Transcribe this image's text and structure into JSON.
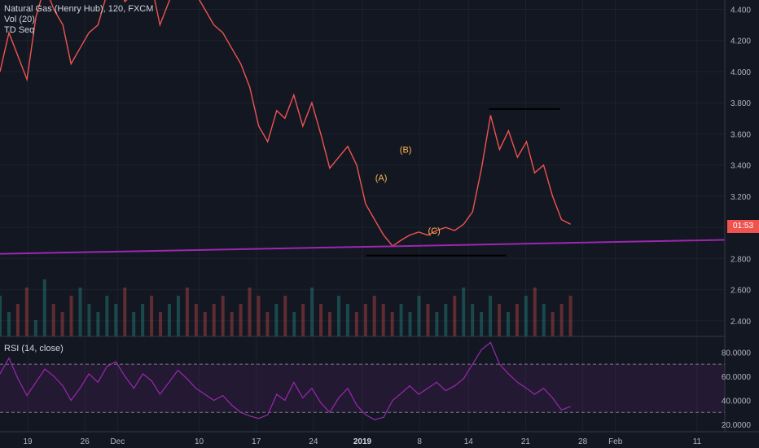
{
  "legend": {
    "title": "Natural Gas (Henry Hub), 120, FXCM",
    "vol": "Vol (20)",
    "td": "TD Seq"
  },
  "rsi_legend": "RSI (14, close)",
  "price_tag": "01:53",
  "colors": {
    "background": "#131722",
    "up": "#26a69a",
    "down": "#ef5350",
    "trendline": "#9c27b0",
    "rsi": "#9c27b0",
    "wave_label": "#ffb74d"
  },
  "wave_labels": [
    {
      "text": "(A)",
      "x": 17.3,
      "y": 3.3
    },
    {
      "text": "(B)",
      "x": 20.3,
      "y": 3.48
    },
    {
      "text": "(C)",
      "x": 23.8,
      "y": 2.96
    }
  ],
  "chart_data": [
    {
      "type": "line",
      "title": "Natural Gas (Henry Hub), 120, FXCM",
      "x_ticks": [
        {
          "label": "19",
          "x": -26
        },
        {
          "label": "26",
          "x": -19
        },
        {
          "label": "Dec",
          "x": -15
        },
        {
          "label": "10",
          "x": -5
        },
        {
          "label": "17",
          "x": 2
        },
        {
          "label": "24",
          "x": 9
        },
        {
          "label": "2019",
          "x": 15
        },
        {
          "label": "8",
          "x": 22
        },
        {
          "label": "14",
          "x": 28
        },
        {
          "label": "21",
          "x": 35
        },
        {
          "label": "28",
          "x": 42
        },
        {
          "label": "Feb",
          "x": 46
        },
        {
          "label": "11",
          "x": 56
        }
      ],
      "y_ticks": [
        "2.400",
        "2.600",
        "2.800",
        "3.000",
        "3.200",
        "3.400",
        "3.600",
        "3.800",
        "4.000",
        "4.200",
        "4.400"
      ],
      "ylim": [
        2.3,
        4.46
      ],
      "xlim": [
        -29.4,
        59.4
      ],
      "price_path": [
        [
          -29.4,
          4.0
        ],
        [
          -28.3,
          4.25
        ],
        [
          -27.2,
          4.1
        ],
        [
          -26.1,
          3.95
        ],
        [
          -25.0,
          4.35
        ],
        [
          -23.9,
          4.55
        ],
        [
          -22.8,
          4.4
        ],
        [
          -21.7,
          4.3
        ],
        [
          -20.7,
          4.05
        ],
        [
          -19.6,
          4.15
        ],
        [
          -18.5,
          4.25
        ],
        [
          -17.4,
          4.3
        ],
        [
          -16.3,
          4.5
        ],
        [
          -15.2,
          4.6
        ],
        [
          -14.1,
          4.45
        ],
        [
          -13.0,
          4.5
        ],
        [
          -11.9,
          4.62
        ],
        [
          -10.8,
          4.55
        ],
        [
          -9.8,
          4.3
        ],
        [
          -8.7,
          4.45
        ],
        [
          -7.6,
          4.6
        ],
        [
          -6.5,
          4.55
        ],
        [
          -5.4,
          4.5
        ],
        [
          -4.3,
          4.4
        ],
        [
          -3.2,
          4.3
        ],
        [
          -2.1,
          4.25
        ],
        [
          -1.0,
          4.15
        ],
        [
          0.1,
          4.05
        ],
        [
          1.2,
          3.9
        ],
        [
          2.3,
          3.65
        ],
        [
          3.4,
          3.55
        ],
        [
          4.5,
          3.75
        ],
        [
          5.5,
          3.7
        ],
        [
          6.6,
          3.85
        ],
        [
          7.7,
          3.65
        ],
        [
          8.8,
          3.8
        ],
        [
          9.9,
          3.6
        ],
        [
          11.0,
          3.38
        ],
        [
          12.1,
          3.45
        ],
        [
          13.2,
          3.52
        ],
        [
          14.3,
          3.4
        ],
        [
          15.4,
          3.15
        ],
        [
          16.5,
          3.05
        ],
        [
          17.6,
          2.95
        ],
        [
          18.7,
          2.88
        ],
        [
          19.8,
          2.92
        ],
        [
          20.8,
          2.95
        ],
        [
          21.9,
          2.97
        ],
        [
          23.0,
          2.95
        ],
        [
          24.1,
          2.98
        ],
        [
          25.2,
          3.0
        ],
        [
          26.3,
          2.98
        ],
        [
          27.4,
          3.02
        ],
        [
          28.5,
          3.1
        ],
        [
          29.6,
          3.38
        ],
        [
          30.7,
          3.72
        ],
        [
          31.8,
          3.5
        ],
        [
          32.9,
          3.62
        ],
        [
          34.0,
          3.45
        ],
        [
          35.1,
          3.55
        ],
        [
          36.1,
          3.35
        ],
        [
          37.2,
          3.4
        ],
        [
          38.3,
          3.2
        ],
        [
          39.4,
          3.05
        ],
        [
          40.5,
          3.02
        ]
      ],
      "trendline": [
        [
          -29.4,
          2.83
        ],
        [
          59.4,
          2.92
        ]
      ],
      "range_levels": [
        {
          "x1": 30.5,
          "x2": 39.2,
          "y": 3.76
        },
        {
          "x1": 15.5,
          "x2": 32.6,
          "y": 2.82
        }
      ],
      "volume_series": [
        5,
        3,
        4,
        6,
        2,
        7,
        4,
        3,
        5,
        6,
        4,
        3,
        5,
        4,
        6,
        3,
        4,
        5,
        3,
        4,
        5,
        6,
        4,
        3,
        4,
        5,
        3,
        4,
        6,
        5,
        3,
        4,
        5,
        3,
        4,
        6,
        4,
        3,
        5,
        4,
        3,
        4,
        5,
        4,
        3,
        4,
        3,
        5,
        4,
        3,
        4,
        5,
        6,
        4,
        3,
        5,
        4,
        3,
        4,
        5,
        6,
        4,
        3,
        4,
        5
      ]
    },
    {
      "type": "line",
      "title": "RSI (14, close)",
      "y_ticks": [
        "20.0000",
        "40.0000",
        "60.0000",
        "80.0000"
      ],
      "ylim": [
        14,
        93
      ],
      "bands": [
        30,
        70
      ],
      "rsi_path": [
        [
          -29.4,
          62
        ],
        [
          -28.3,
          75
        ],
        [
          -27.2,
          58
        ],
        [
          -26.1,
          44
        ],
        [
          -25.0,
          55
        ],
        [
          -23.9,
          66
        ],
        [
          -22.8,
          60
        ],
        [
          -21.7,
          52
        ],
        [
          -20.7,
          40
        ],
        [
          -19.6,
          50
        ],
        [
          -18.5,
          62
        ],
        [
          -17.4,
          55
        ],
        [
          -16.3,
          68
        ],
        [
          -15.2,
          72
        ],
        [
          -14.1,
          60
        ],
        [
          -13.0,
          50
        ],
        [
          -11.9,
          62
        ],
        [
          -10.8,
          56
        ],
        [
          -9.8,
          45
        ],
        [
          -8.7,
          55
        ],
        [
          -7.6,
          65
        ],
        [
          -6.5,
          58
        ],
        [
          -5.4,
          50
        ],
        [
          -4.3,
          45
        ],
        [
          -3.2,
          40
        ],
        [
          -2.1,
          44
        ],
        [
          -1.0,
          36
        ],
        [
          0.1,
          30
        ],
        [
          1.2,
          27
        ],
        [
          2.3,
          25
        ],
        [
          3.4,
          28
        ],
        [
          4.5,
          45
        ],
        [
          5.5,
          40
        ],
        [
          6.6,
          55
        ],
        [
          7.7,
          42
        ],
        [
          8.8,
          50
        ],
        [
          9.9,
          38
        ],
        [
          11.0,
          30
        ],
        [
          12.1,
          42
        ],
        [
          13.2,
          50
        ],
        [
          14.3,
          36
        ],
        [
          15.4,
          28
        ],
        [
          16.5,
          24
        ],
        [
          17.6,
          26
        ],
        [
          18.7,
          40
        ],
        [
          19.8,
          46
        ],
        [
          20.8,
          52
        ],
        [
          21.9,
          45
        ],
        [
          23.0,
          50
        ],
        [
          24.1,
          55
        ],
        [
          25.2,
          48
        ],
        [
          26.3,
          52
        ],
        [
          27.4,
          58
        ],
        [
          28.5,
          70
        ],
        [
          29.6,
          82
        ],
        [
          30.7,
          88
        ],
        [
          31.8,
          70
        ],
        [
          32.9,
          62
        ],
        [
          34.0,
          55
        ],
        [
          35.1,
          50
        ],
        [
          36.1,
          45
        ],
        [
          37.2,
          50
        ],
        [
          38.3,
          42
        ],
        [
          39.4,
          32
        ],
        [
          40.5,
          35
        ]
      ],
      "x_axis_labels": [
        "19",
        "26",
        "Dec",
        "10",
        "17",
        "24",
        "2019",
        "8",
        "14",
        "21",
        "28",
        "Feb",
        "11"
      ]
    }
  ]
}
